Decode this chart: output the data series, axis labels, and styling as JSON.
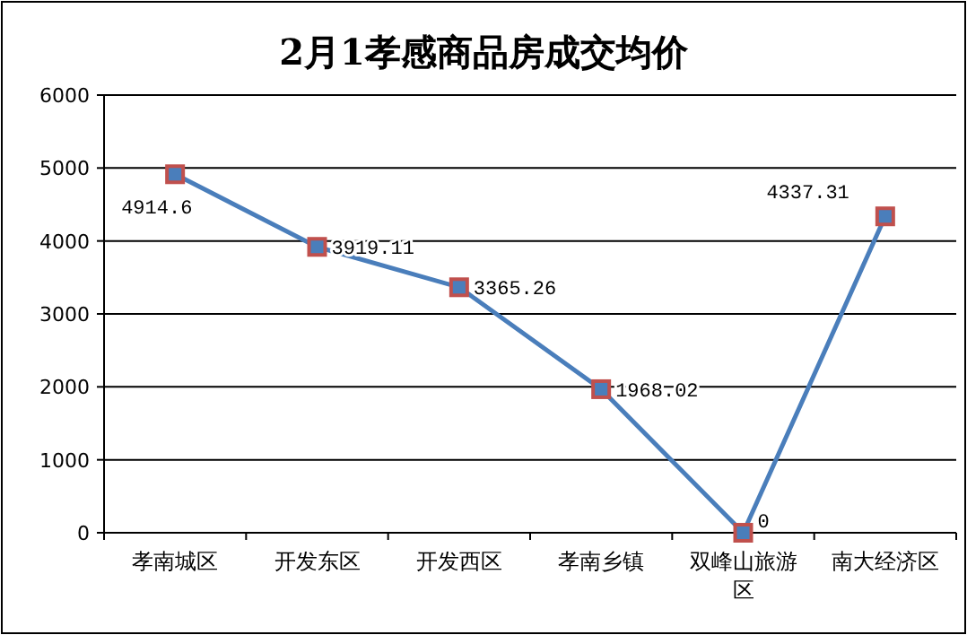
{
  "chart_data": {
    "type": "line",
    "title": "2月1孝感商品房成交均价",
    "categories": [
      "孝南城区",
      "开发东区",
      "开发西区",
      "孝南乡镇",
      "双峰山旅游区",
      "南大经济区"
    ],
    "series": [
      {
        "color": "#4a7ebb",
        "values": [
          4914.6,
          3919.11,
          3365.26,
          1968.02,
          0,
          4337.31
        ]
      }
    ],
    "ylim": [
      0,
      6000
    ],
    "yticks": [
      0,
      1000,
      2000,
      3000,
      4000,
      5000,
      6000
    ],
    "grid": "y",
    "marker": "square",
    "data_labels": true
  }
}
